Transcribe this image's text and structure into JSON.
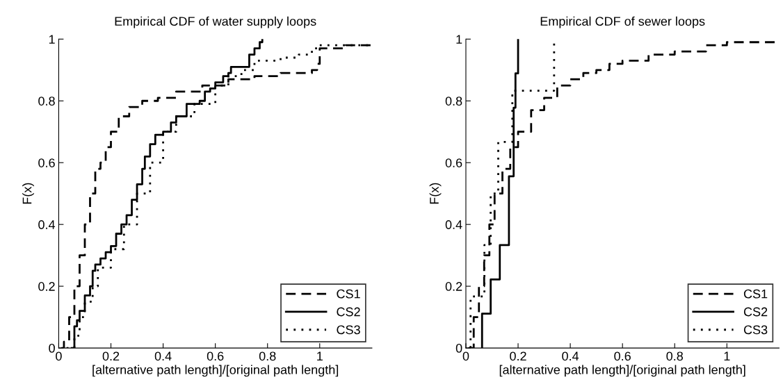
{
  "chart_data": [
    {
      "type": "step",
      "title": "Empirical CDF of water supply loops",
      "xlabel": "[alternative path length]/[original path length]",
      "ylabel": "F(x)",
      "xlim": [
        0,
        1.2
      ],
      "ylim": [
        0,
        1
      ],
      "xticks": [
        0,
        0.2,
        0.4,
        0.6,
        0.8,
        1
      ],
      "yticks": [
        0,
        0.2,
        0.4,
        0.6,
        0.8,
        1
      ],
      "grid": false,
      "legend": "bottom right",
      "series": [
        {
          "name": "CS1",
          "color": "#000000",
          "line_style": "dashed",
          "x": [
            0.01,
            0.02,
            0.04,
            0.06,
            0.08,
            0.1,
            0.12,
            0.14,
            0.16,
            0.18,
            0.2,
            0.23,
            0.27,
            0.32,
            0.38,
            0.45,
            0.55,
            0.62,
            0.65,
            0.75,
            0.85,
            0.97,
            0.99,
            1.0,
            1.1,
            1.2
          ],
          "values": [
            0,
            0.02,
            0.1,
            0.2,
            0.3,
            0.4,
            0.5,
            0.58,
            0.6,
            0.65,
            0.7,
            0.75,
            0.78,
            0.8,
            0.81,
            0.83,
            0.85,
            0.85,
            0.87,
            0.88,
            0.89,
            0.9,
            0.92,
            0.97,
            0.98,
            0.98
          ]
        },
        {
          "name": "CS2",
          "color": "#000000",
          "line_style": "solid",
          "x": [
            0.05,
            0.06,
            0.07,
            0.08,
            0.1,
            0.12,
            0.13,
            0.14,
            0.16,
            0.18,
            0.2,
            0.22,
            0.24,
            0.26,
            0.28,
            0.3,
            0.32,
            0.33,
            0.35,
            0.37,
            0.4,
            0.43,
            0.45,
            0.49,
            0.54,
            0.56,
            0.58,
            0.6,
            0.63,
            0.65,
            0.66,
            0.72,
            0.73,
            0.75,
            0.77,
            0.78
          ],
          "values": [
            0,
            0.07,
            0.09,
            0.12,
            0.17,
            0.2,
            0.25,
            0.27,
            0.29,
            0.31,
            0.33,
            0.37,
            0.4,
            0.43,
            0.48,
            0.53,
            0.58,
            0.62,
            0.66,
            0.69,
            0.7,
            0.73,
            0.75,
            0.79,
            0.8,
            0.83,
            0.84,
            0.86,
            0.88,
            0.89,
            0.91,
            0.91,
            0.95,
            0.97,
            0.99,
            1.0
          ]
        },
        {
          "name": "CS3",
          "color": "#000000",
          "line_style": "dotted",
          "x": [
            0.03,
            0.06,
            0.08,
            0.1,
            0.13,
            0.15,
            0.2,
            0.25,
            0.3,
            0.35,
            0.4,
            0.45,
            0.52,
            0.6,
            0.65,
            0.7,
            0.75,
            0.85,
            0.92,
            0.97,
            1.0,
            1.1,
            1.2
          ],
          "values": [
            0,
            0.04,
            0.1,
            0.15,
            0.2,
            0.26,
            0.32,
            0.4,
            0.5,
            0.6,
            0.7,
            0.75,
            0.79,
            0.85,
            0.88,
            0.9,
            0.93,
            0.94,
            0.95,
            0.97,
            0.98,
            0.98,
            0.98
          ]
        }
      ]
    },
    {
      "type": "step",
      "title": "Empirical CDF of sewer loops",
      "xlabel": "[alternative path length]/[original path length]",
      "ylabel": "F(x)",
      "xlim": [
        0,
        1.2
      ],
      "ylim": [
        0,
        1
      ],
      "xticks": [
        0,
        0.2,
        0.4,
        0.6,
        0.8,
        1
      ],
      "yticks": [
        0,
        0.2,
        0.4,
        0.6,
        0.8,
        1
      ],
      "grid": false,
      "legend": "bottom right",
      "series": [
        {
          "name": "CS1",
          "color": "#000000",
          "line_style": "dashed",
          "x": [
            0.01,
            0.03,
            0.05,
            0.07,
            0.09,
            0.11,
            0.14,
            0.17,
            0.2,
            0.25,
            0.3,
            0.35,
            0.4,
            0.45,
            0.5,
            0.55,
            0.6,
            0.7,
            0.8,
            0.9,
            0.92,
            1.0,
            1.2
          ],
          "values": [
            0,
            0.1,
            0.2,
            0.3,
            0.4,
            0.5,
            0.58,
            0.65,
            0.7,
            0.77,
            0.81,
            0.85,
            0.87,
            0.89,
            0.9,
            0.92,
            0.93,
            0.95,
            0.96,
            0.96,
            0.98,
            0.99,
            0.99
          ]
        },
        {
          "name": "CS2",
          "color": "#000000",
          "line_style": "solid",
          "x": [
            0.062,
            0.062,
            0.095,
            0.13,
            0.165,
            0.183,
            0.19,
            0.2
          ],
          "values": [
            0,
            0.111,
            0.222,
            0.333,
            0.556,
            0.778,
            0.889,
            1.0
          ]
        },
        {
          "name": "CS3",
          "color": "#000000",
          "line_style": "dotted",
          "x": [
            0.018,
            0.018,
            0.071,
            0.095,
            0.124,
            0.178,
            0.338
          ],
          "values": [
            0,
            0.167,
            0.333,
            0.5,
            0.667,
            0.833,
            1.0
          ]
        }
      ]
    }
  ]
}
